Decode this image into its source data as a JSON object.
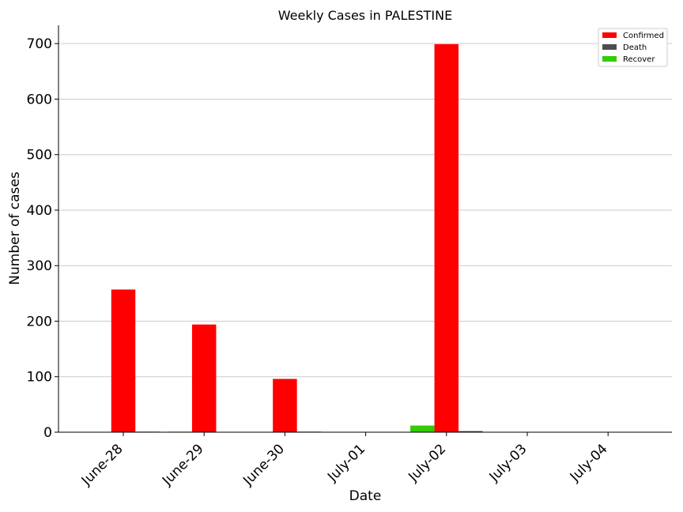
{
  "chart_data": {
    "type": "bar",
    "title": "Weekly Cases in PALESTINE",
    "xlabel": "Date",
    "ylabel": "Number of cases",
    "categories": [
      "June-28",
      "June-29",
      "June-30",
      "July-01",
      "July-02",
      "July-03",
      "July-04"
    ],
    "series": [
      {
        "name": "Recover",
        "color": "#33cc00",
        "values": [
          0,
          1,
          0,
          0,
          12,
          0,
          0
        ]
      },
      {
        "name": "Confirmed",
        "color": "#ff0000",
        "values": [
          257,
          194,
          96,
          0,
          699,
          0,
          0
        ]
      },
      {
        "name": "Death",
        "color": "#4d4d4d",
        "values": [
          1,
          0,
          1,
          0,
          2,
          0,
          0
        ]
      }
    ],
    "legend_order": [
      "Confirmed",
      "Death",
      "Recover"
    ],
    "ylim": [
      0,
      733
    ],
    "yticks": [
      0,
      100,
      200,
      300,
      400,
      500,
      600,
      700
    ],
    "grid": "horizontal",
    "legend_position": "top-right"
  }
}
